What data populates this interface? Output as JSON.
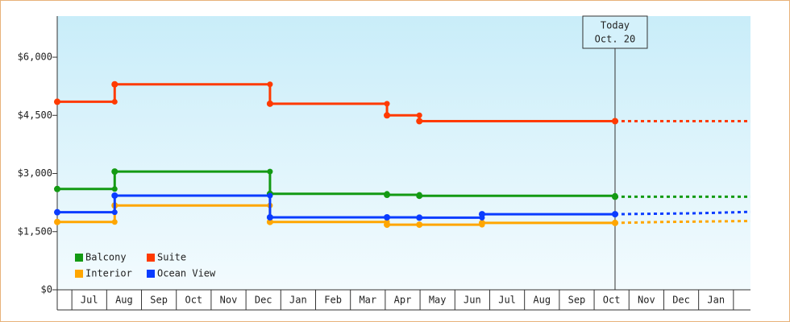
{
  "chart_data": {
    "type": "step-line",
    "categories": [
      "Jul",
      "Aug",
      "Sep",
      "Oct",
      "Nov",
      "Dec",
      "Jan",
      "Feb",
      "Mar",
      "Apr",
      "May",
      "Jun",
      "Jul",
      "Aug",
      "Sep",
      "Oct",
      "Nov",
      "Dec",
      "Jan"
    ],
    "xlim": [
      -0.42,
      19.49
    ],
    "ylim": [
      0,
      7060
    ],
    "yticks": [
      {
        "value": 0,
        "label": "$0"
      },
      {
        "value": 1500,
        "label": "$1,500"
      },
      {
        "value": 3000,
        "label": "$3,000"
      },
      {
        "value": 4500,
        "label": "$4,500"
      },
      {
        "value": 6000,
        "label": "$6,000"
      }
    ],
    "annotation": {
      "x": 15.6,
      "lines": [
        "Today",
        "Oct. 20"
      ]
    },
    "series": [
      {
        "name": "Balcony",
        "color": "#139a13",
        "x": [
          -0.42,
          1.23,
          5.69,
          9.05,
          9.98,
          15.6
        ],
        "values": [
          2600,
          3050,
          2475,
          2450,
          2425,
          2400
        ],
        "forecast": {
          "x": [
            15.6,
            19.49
          ],
          "values": [
            2400,
            2400
          ]
        }
      },
      {
        "name": "Suite",
        "color": "#ff3a00",
        "x": [
          -0.42,
          1.23,
          5.69,
          9.05,
          9.98,
          15.6
        ],
        "values": [
          4850,
          5300,
          4800,
          4500,
          4350,
          4350
        ],
        "forecast": {
          "x": [
            15.6,
            19.49
          ],
          "values": [
            4350,
            4350
          ]
        }
      },
      {
        "name": "Interior",
        "color": "#ffa600",
        "x": [
          -0.42,
          1.23,
          5.69,
          9.05,
          9.98,
          11.78,
          15.6
        ],
        "values": [
          1750,
          2175,
          1750,
          1680,
          1680,
          1725,
          1725
        ],
        "forecast": {
          "x": [
            15.6,
            16.99,
            19.49
          ],
          "values": [
            1725,
            1750,
            1775
          ]
        }
      },
      {
        "name": "Ocean View",
        "color": "#0a3cff",
        "x": [
          -0.42,
          1.23,
          5.69,
          9.05,
          9.98,
          11.78,
          15.6
        ],
        "values": [
          2000,
          2430,
          1870,
          1870,
          1860,
          1950,
          1950
        ],
        "forecast": {
          "x": [
            15.6,
            17.99,
            19.49
          ],
          "values": [
            1950,
            1975,
            2010
          ]
        }
      }
    ]
  }
}
